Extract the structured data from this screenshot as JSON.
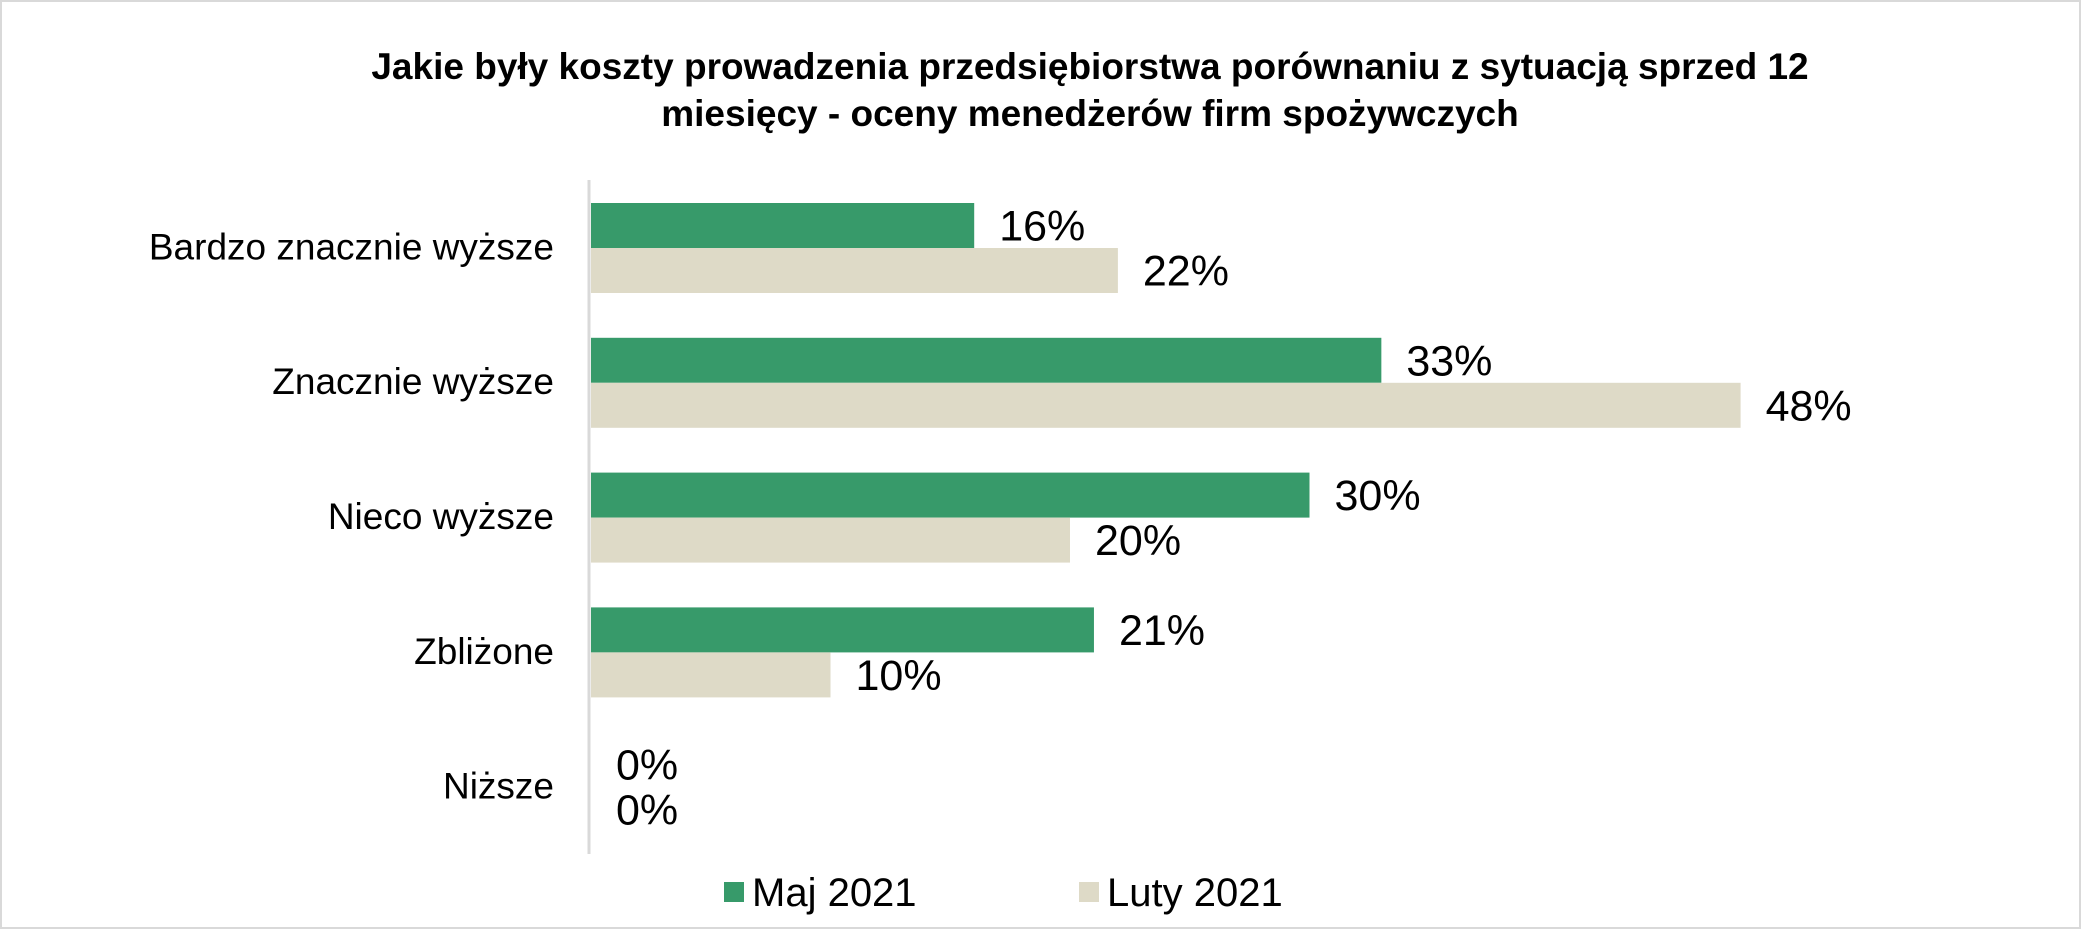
{
  "chart_data": {
    "type": "bar",
    "orientation": "horizontal",
    "title_lines": [
      "Jakie były koszty prowadzenia przedsiębiorstwa porównaniu z sytuacją sprzed 12",
      "miesięcy - oceny menedżerów firm spożywczych"
    ],
    "categories": [
      "Bardzo znacznie wyższe",
      "Znacznie wyższe",
      "Nieco wyższe",
      "Zbliżone",
      "Niższe"
    ],
    "series": [
      {
        "name": "Maj 2021",
        "color": "#379a6a",
        "values": [
          16,
          33,
          30,
          21,
          0
        ],
        "labels": [
          "16%",
          "33%",
          "30%",
          "21%",
          "0%"
        ]
      },
      {
        "name": "Luty 2021",
        "color": "#dedac7",
        "values": [
          22,
          48,
          20,
          10,
          0
        ],
        "labels": [
          "22%",
          "48%",
          "20%",
          "10%",
          "0%"
        ]
      }
    ],
    "value_unit": "%",
    "xlim": [
      0,
      58
    ],
    "grid": false,
    "legend": "bottom-center"
  }
}
